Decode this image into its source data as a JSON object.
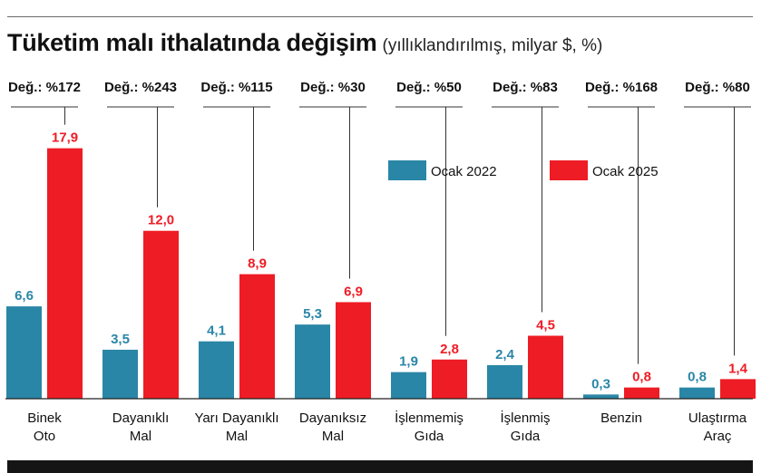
{
  "header": {
    "title": "Tüketim malı ithalatında değişim",
    "subtitle": "(yıllıklandırılmış, milyar $, %)"
  },
  "colors": {
    "series_2022": "#2a86a6",
    "series_2025": "#ee1c25",
    "label_2022": "#2a86a6",
    "label_2025": "#ee1c25",
    "axis": "#222222"
  },
  "chart_data": {
    "type": "bar",
    "title": "Tüketim malı ithalatında değişim",
    "subtitle": "(yıllıklandırılmış, milyar $, %)",
    "categories": [
      [
        "Binek",
        "Oto"
      ],
      [
        "Dayanıklı",
        "Mal"
      ],
      [
        "Yarı Dayanıklı",
        "Mal"
      ],
      [
        "Dayanıksız",
        "Mal"
      ],
      [
        "İşlenmemiş",
        "Gıda"
      ],
      [
        "İşlenmiş",
        "Gıda"
      ],
      [
        "Benzin"
      ],
      [
        "Ulaştırma",
        "Araç"
      ]
    ],
    "series": [
      {
        "name": "Ocak 2022",
        "values": [
          6.6,
          3.5,
          4.1,
          5.3,
          1.9,
          2.4,
          0.3,
          0.8
        ],
        "labels": [
          "6,6",
          "3,5",
          "4,1",
          "5,3",
          "1,9",
          "2,4",
          "0,3",
          "0,8"
        ]
      },
      {
        "name": "Ocak 2025",
        "values": [
          17.9,
          12.0,
          8.9,
          6.9,
          2.8,
          4.5,
          0.8,
          1.4
        ],
        "labels": [
          "17,9",
          "12,0",
          "8,9",
          "6,9",
          "2,8",
          "4,5",
          "0,8",
          "1,4"
        ]
      }
    ],
    "changes": [
      "Değ.: %172",
      "Değ.: %243",
      "Değ.: %115",
      "Değ.: %30",
      "Değ.: %50",
      "Değ.: %83",
      "Değ.: %168",
      "Değ.: %80"
    ],
    "ylim": [
      0,
      19.3
    ],
    "xlabel": "",
    "ylabel": "",
    "grid": false,
    "legend": "top-right, inside plot area"
  }
}
